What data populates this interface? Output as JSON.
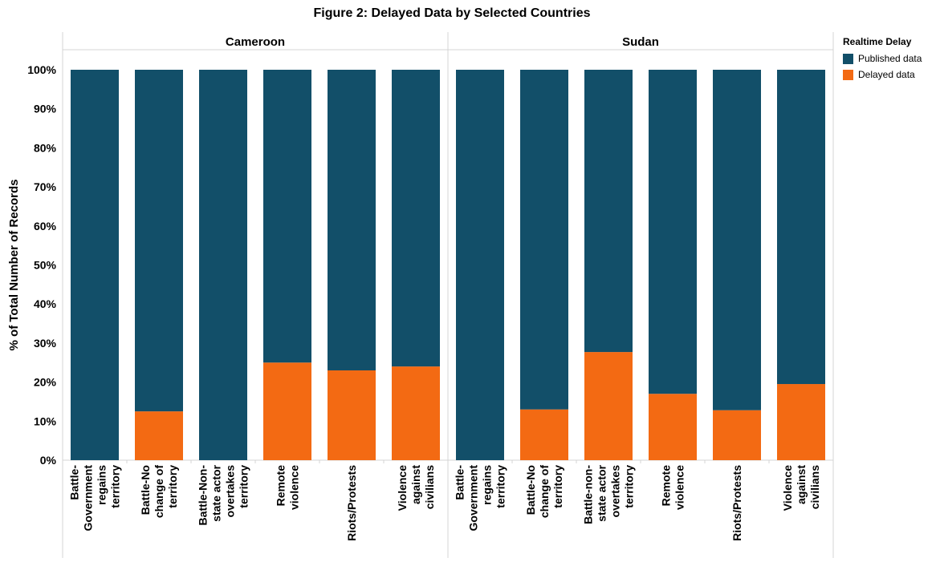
{
  "title": "Figure 2: Delayed Data by Selected Countries",
  "legend": {
    "title": "Realtime Delay",
    "items": [
      {
        "label": "Published data",
        "color": "#124f69"
      },
      {
        "label": "Delayed data",
        "color": "#f36a13"
      }
    ]
  },
  "chart_data": {
    "type": "bar",
    "stacked": true,
    "title": "Figure 2: Delayed Data by Selected Countries",
    "ylabel": "% of Total Number of Records",
    "ylim": [
      0,
      100
    ],
    "yticks": [
      "0%",
      "10%",
      "20%",
      "30%",
      "40%",
      "50%",
      "60%",
      "70%",
      "80%",
      "90%",
      "100%"
    ],
    "panels": [
      {
        "name": "Cameroon",
        "categories": [
          [
            "Battle-",
            "Government",
            "regains",
            "territory"
          ],
          [
            "Battle-No",
            "change of",
            "territory"
          ],
          [
            "Battle-Non-",
            "state actor",
            "overtakes",
            "territory"
          ],
          [
            "Remote",
            "violence"
          ],
          [
            "Riots/Protests"
          ],
          [
            "Violence",
            "against",
            "civilians"
          ]
        ],
        "series": [
          {
            "name": "Delayed data",
            "values": [
              0,
              12.5,
              0,
              25,
              23,
              24
            ]
          },
          {
            "name": "Published data",
            "values": [
              100,
              87.5,
              100,
              75,
              77,
              76
            ]
          }
        ]
      },
      {
        "name": "Sudan",
        "categories": [
          [
            "Battle-",
            "Government",
            "regains",
            "territory"
          ],
          [
            "Battle-No",
            "change of",
            "territory"
          ],
          [
            "Battle-non-",
            "state actor",
            "overtakes",
            "territory"
          ],
          [
            "Remote",
            "violence"
          ],
          [
            "Riots/Protests"
          ],
          [
            "Violence",
            "against",
            "civilians"
          ]
        ],
        "series": [
          {
            "name": "Delayed data",
            "values": [
              0,
              13,
              27.7,
              17,
              12.8,
              19.5
            ]
          },
          {
            "name": "Published data",
            "values": [
              100,
              87,
              72.3,
              83,
              87.2,
              80.5
            ]
          }
        ]
      }
    ],
    "legend_position": "right",
    "grid": false
  }
}
